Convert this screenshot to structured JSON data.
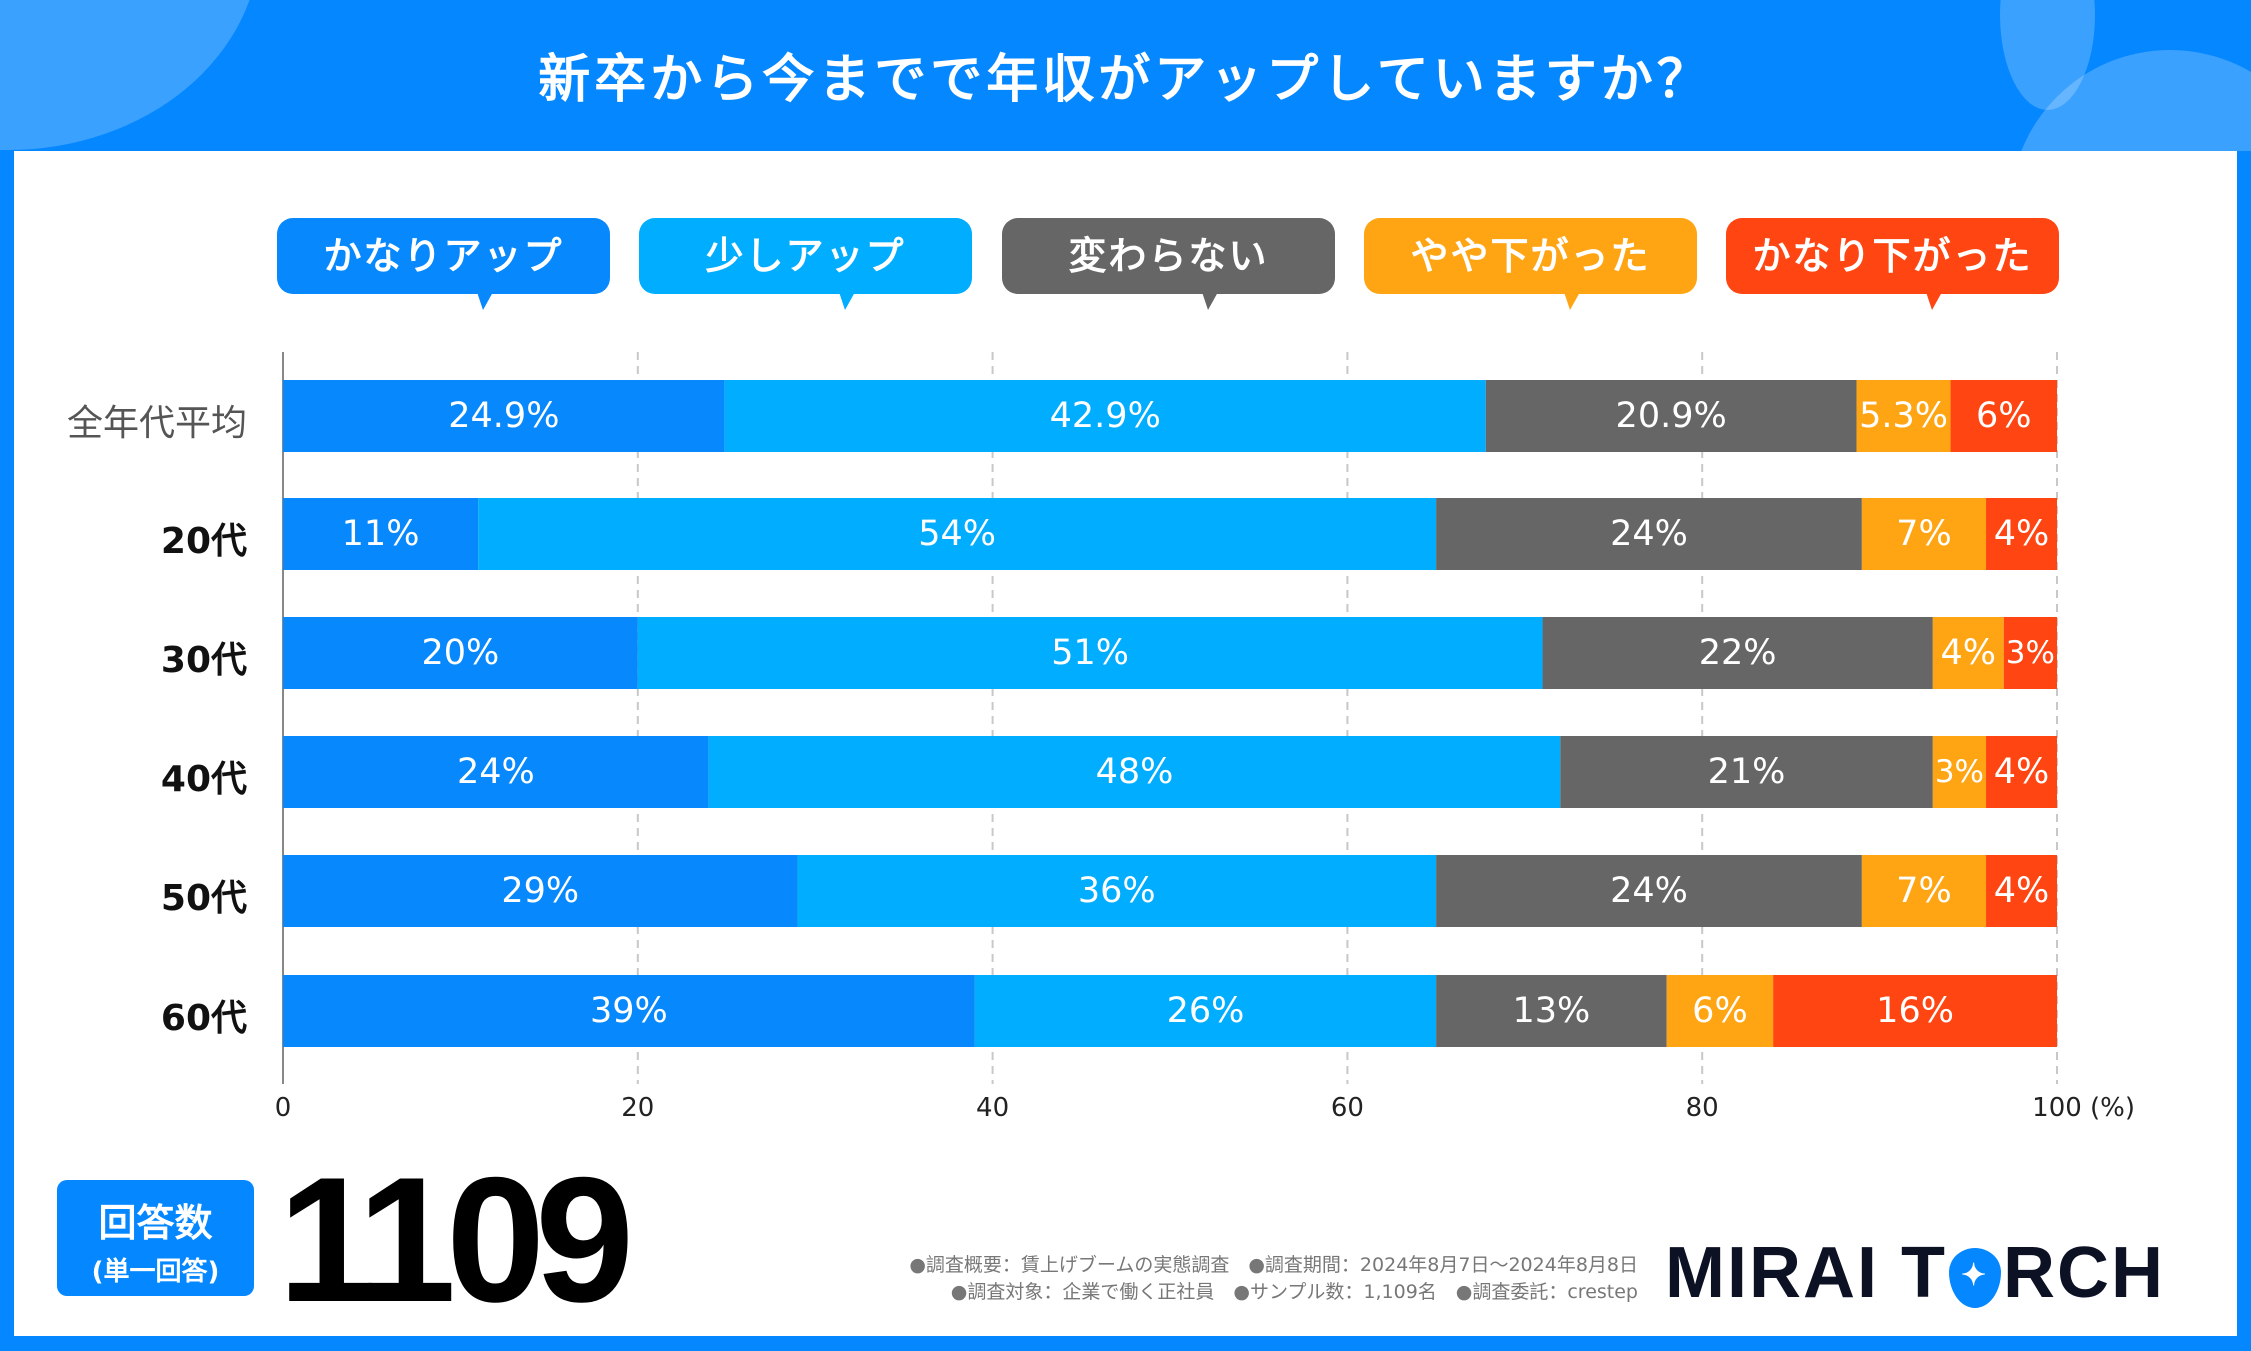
{
  "title": "新卒から今までで年収がアップしていますか？",
  "colors": {
    "brand": "#0587ff",
    "series": [
      "#0788fd",
      "#00adff",
      "#666666",
      "#ffa514",
      "#ff4511"
    ]
  },
  "chart_data": {
    "type": "bar",
    "orientation": "horizontal-stacked",
    "categories": [
      "全年代平均",
      "20代",
      "30代",
      "40代",
      "50代",
      "60代"
    ],
    "series": [
      {
        "name": "かなりアップ",
        "values": [
          24.9,
          11,
          20,
          24,
          29,
          39
        ],
        "labels": [
          "24.9%",
          "11%",
          "20%",
          "24%",
          "29%",
          "39%"
        ]
      },
      {
        "name": "少しアップ",
        "values": [
          42.9,
          54,
          51,
          48,
          36,
          26
        ],
        "labels": [
          "42.9%",
          "54%",
          "51%",
          "48%",
          "36%",
          "26%"
        ]
      },
      {
        "name": "変わらない",
        "values": [
          20.9,
          24,
          22,
          21,
          24,
          13
        ],
        "labels": [
          "20.9%",
          "24%",
          "22%",
          "21%",
          "24%",
          "13%"
        ]
      },
      {
        "name": "やや下がった",
        "values": [
          5.3,
          7,
          4,
          3,
          7,
          6
        ],
        "labels": [
          "5.3%",
          "7%",
          "4%",
          "3%",
          "7%",
          "6%"
        ]
      },
      {
        "name": "かなり下がった",
        "values": [
          6,
          4,
          3,
          4,
          4,
          16
        ],
        "labels": [
          "6%",
          "4%",
          "3%",
          "4%",
          "4%",
          "16%"
        ]
      }
    ],
    "xlim": [
      0,
      100
    ],
    "xticks": [
      "0",
      "20",
      "40",
      "60",
      "80",
      "100"
    ],
    "xunit": "(%)",
    "grid": true,
    "legend": "top"
  },
  "footer": {
    "count_label": "回答数",
    "count_sub": "(単一回答)",
    "count": "1109",
    "notes": [
      "●調査概要：賃上げブームの実態調査　●調査期間：2024年8月7日～2024年8月8日",
      "●調査対象：企業で働く正社員　●サンプル数：1,109名　●調査委託：crestep"
    ],
    "logo_left": "MIRAI T",
    "logo_right": "RCH"
  }
}
